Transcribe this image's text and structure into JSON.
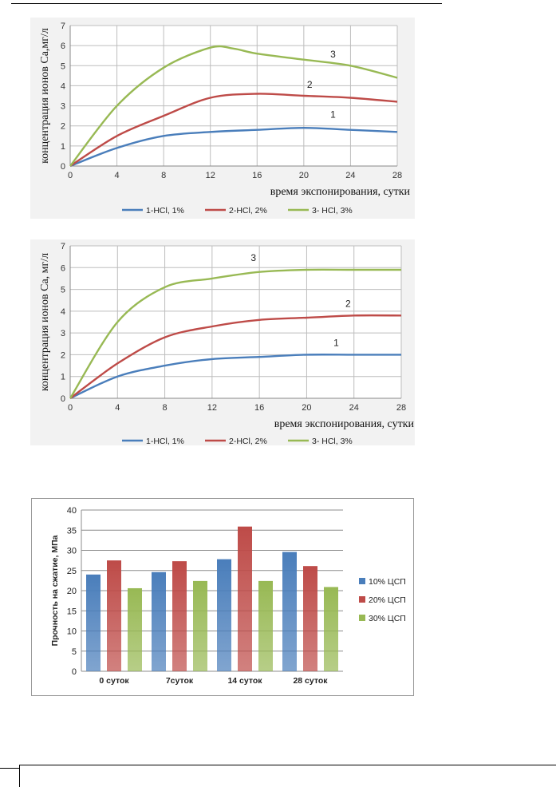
{
  "charts": [
    {
      "type": "line",
      "xlabel": "время экспонирования, сутки",
      "ylabel": "концентрация ионов Ca,мг/л",
      "xlim": [
        0,
        28
      ],
      "ylim": [
        0,
        7
      ],
      "xticks": [
        0,
        4,
        8,
        12,
        16,
        20,
        24,
        28
      ],
      "yticks": [
        0,
        1,
        2,
        3,
        4,
        5,
        6,
        7
      ],
      "grid": true,
      "legend_position": "bottom",
      "series": [
        {
          "name": "1-HCl, 1%",
          "label": "1",
          "color": "#4a7ebb",
          "x": [
            0,
            4,
            8,
            12,
            16,
            20,
            24,
            28
          ],
          "y": [
            0,
            0.9,
            1.5,
            1.7,
            1.8,
            1.9,
            1.8,
            1.7
          ],
          "label_at": [
            22.5,
            2.4
          ]
        },
        {
          "name": "2-HCl, 2%",
          "label": "2",
          "color": "#be4b48",
          "x": [
            0,
            4,
            8,
            12,
            16,
            20,
            24,
            28
          ],
          "y": [
            0,
            1.5,
            2.5,
            3.4,
            3.6,
            3.5,
            3.4,
            3.2
          ],
          "label_at": [
            20.5,
            3.9
          ]
        },
        {
          "name": "3- HCl, 3%",
          "label": "3",
          "color": "#98b954",
          "x": [
            0,
            4,
            8,
            12,
            14,
            16,
            20,
            24,
            28
          ],
          "y": [
            0,
            3.0,
            4.9,
            5.9,
            5.85,
            5.6,
            5.3,
            5.0,
            4.4
          ],
          "label_at": [
            22.5,
            5.4
          ]
        }
      ]
    },
    {
      "type": "line",
      "xlabel": "время экспонирования, сутки",
      "ylabel": "концентрация ионов Ca, мг/л",
      "xlim": [
        0,
        28
      ],
      "ylim": [
        0,
        7
      ],
      "xticks": [
        0,
        4,
        8,
        12,
        16,
        20,
        24,
        28
      ],
      "yticks": [
        0,
        1,
        2,
        3,
        4,
        5,
        6,
        7
      ],
      "grid": true,
      "legend_position": "bottom",
      "series": [
        {
          "name": "1-HCl, 1%",
          "label": "1",
          "color": "#4a7ebb",
          "x": [
            0,
            4,
            8,
            12,
            16,
            20,
            24,
            28
          ],
          "y": [
            0,
            1.0,
            1.5,
            1.8,
            1.9,
            2.0,
            2.0,
            2.0
          ],
          "label_at": [
            22.5,
            2.4
          ]
        },
        {
          "name": "2-HCl, 2%",
          "label": "2",
          "color": "#be4b48",
          "x": [
            0,
            4,
            8,
            12,
            16,
            20,
            24,
            28
          ],
          "y": [
            0,
            1.6,
            2.8,
            3.3,
            3.6,
            3.7,
            3.8,
            3.8
          ],
          "label_at": [
            23.5,
            4.2
          ]
        },
        {
          "name": "3- HCl, 3%",
          "label": "3",
          "color": "#98b954",
          "x": [
            0,
            4,
            8,
            12,
            16,
            20,
            24,
            28
          ],
          "y": [
            0,
            3.5,
            5.1,
            5.5,
            5.8,
            5.9,
            5.9,
            5.9
          ],
          "label_at": [
            15.5,
            6.3
          ]
        }
      ]
    },
    {
      "type": "bar",
      "ylabel": "Прочность на сжатие, МПа",
      "categories": [
        "0 суток",
        "7суток",
        "14 суток",
        "28 суток"
      ],
      "ylim": [
        0,
        40
      ],
      "yticks": [
        0,
        5,
        10,
        15,
        20,
        25,
        30,
        35,
        40
      ],
      "grid": true,
      "legend_position": "right",
      "series": [
        {
          "name": "10% ЦСП",
          "color": "#4a7ebb",
          "values": [
            24.0,
            24.6,
            27.8,
            29.6
          ]
        },
        {
          "name": "20% ЦСП",
          "color": "#be4b48",
          "values": [
            27.5,
            27.3,
            35.9,
            26.1
          ]
        },
        {
          "name": "30% ЦСП",
          "color": "#98b954",
          "values": [
            20.6,
            22.4,
            22.4,
            20.9
          ]
        }
      ]
    }
  ]
}
